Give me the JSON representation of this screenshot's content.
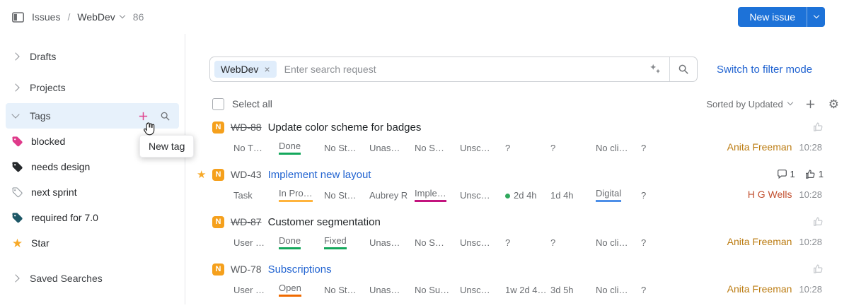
{
  "topbar": {
    "issues_label": "Issues",
    "breadcrumb_separator": "/",
    "project": "WebDev",
    "issue_count": "86",
    "new_issue_label": "New issue",
    "accent_color": "#1d72d8"
  },
  "icons": {
    "sidebar_toggle": "panel-icon",
    "breadcrumb_expand": "chevron-down-icon",
    "new_issue_dropdown": "chevron-down-icon",
    "query_assist": "sparkle-icon",
    "search": "magnifier-icon",
    "add_tag": "plus-icon",
    "tag_search": "magnifier-icon",
    "add_column": "plus-icon",
    "settings": "gear-icon",
    "comments": "comment-icon",
    "likes": "thumbs-up-icon",
    "favorite": "star-icon",
    "pointer": "hand-cursor-icon"
  },
  "sidebar": {
    "drafts_label": "Drafts",
    "projects_label": "Projects",
    "tags_label": "Tags",
    "saved_searches_label": "Saved Searches",
    "new_tag_tooltip": "New tag",
    "add_tag_color": "#e0418c",
    "selected_row_bg": "#e7f1fb",
    "tags": [
      {
        "label": "blocked",
        "color": "#df3a8a",
        "style": "filled"
      },
      {
        "label": "needs design",
        "color": "#26292c",
        "style": "filled"
      },
      {
        "label": "next sprint",
        "color": "#ffffff",
        "style": "outlined"
      },
      {
        "label": "required for 7.0",
        "color": "#1d5766",
        "style": "filled"
      },
      {
        "label": "Star",
        "icon": "star",
        "color": "#f7a928"
      }
    ]
  },
  "search": {
    "chip": "WebDev",
    "chip_remove_icon": "×",
    "placeholder": "Enter search request",
    "filter_mode_link": "Switch to filter mode"
  },
  "toolbar": {
    "select_all_label": "Select all",
    "sorted_by_label": "Sorted by Updated"
  },
  "issues": [
    {
      "starred": false,
      "project_letter": "N",
      "id": "WD-88",
      "resolved": true,
      "title": "Update color scheme for badges",
      "title_style": "plain",
      "fields": [
        {
          "t": "No T…"
        },
        {
          "t": "Done",
          "u": "#14a85c"
        },
        {
          "t": "No St…"
        },
        {
          "t": "Unas…"
        },
        {
          "t": "No S…"
        },
        {
          "t": "Unsc…"
        },
        {
          "t": "?"
        },
        {
          "t": "?"
        },
        {
          "t": "No cli…"
        },
        {
          "t": "?"
        }
      ],
      "comments": "",
      "likes": "",
      "updated_by": "Anita Freeman",
      "updated_by_color": "#bb7b10",
      "updated_time": "10:28"
    },
    {
      "starred": true,
      "project_letter": "N",
      "id": "WD-43",
      "resolved": false,
      "title": "Implement new layout",
      "title_style": "link",
      "fields": [
        {
          "t": "Task"
        },
        {
          "t": "In Pro…",
          "u": "#ffb43d"
        },
        {
          "t": "No St…"
        },
        {
          "t": "Aubrey R"
        },
        {
          "t": "Imple…",
          "u": "#c3147e"
        },
        {
          "t": "Unsc…"
        },
        {
          "t": "2d 4h",
          "dot": "#2fa85c"
        },
        {
          "t": "1d 4h"
        },
        {
          "t": "Digital",
          "u": "#4d8fe8"
        },
        {
          "t": "?"
        }
      ],
      "comments": "1",
      "likes": "1",
      "updated_by": "H G Wells",
      "updated_by_color": "#c25030",
      "updated_time": "10:28"
    },
    {
      "starred": false,
      "project_letter": "N",
      "id": "WD-87",
      "resolved": true,
      "title": "Customer segmentation",
      "title_style": "plain",
      "fields": [
        {
          "t": "User …"
        },
        {
          "t": "Done",
          "u": "#14a85c"
        },
        {
          "t": "Fixed",
          "u": "#14a85c"
        },
        {
          "t": "Unas…"
        },
        {
          "t": "No S…"
        },
        {
          "t": "Unsc…"
        },
        {
          "t": "?"
        },
        {
          "t": "?"
        },
        {
          "t": "No cli…"
        },
        {
          "t": "?"
        }
      ],
      "comments": "",
      "likes": "",
      "updated_by": "Anita Freeman",
      "updated_by_color": "#bb7b10",
      "updated_time": "10:28"
    },
    {
      "starred": false,
      "project_letter": "N",
      "id": "WD-78",
      "resolved": false,
      "title": "Subscriptions",
      "title_style": "link",
      "fields": [
        {
          "t": "User …"
        },
        {
          "t": "Open",
          "u": "#f06a00"
        },
        {
          "t": "No St…"
        },
        {
          "t": "Unas…"
        },
        {
          "t": "No Su…"
        },
        {
          "t": "Unsc…"
        },
        {
          "t": "1w 2d 4…"
        },
        {
          "t": "3d 5h"
        },
        {
          "t": "No cli…"
        },
        {
          "t": "?"
        }
      ],
      "comments": "",
      "likes": "",
      "updated_by": "Anita Freeman",
      "updated_by_color": "#bb7b10",
      "updated_time": "10:28"
    }
  ]
}
